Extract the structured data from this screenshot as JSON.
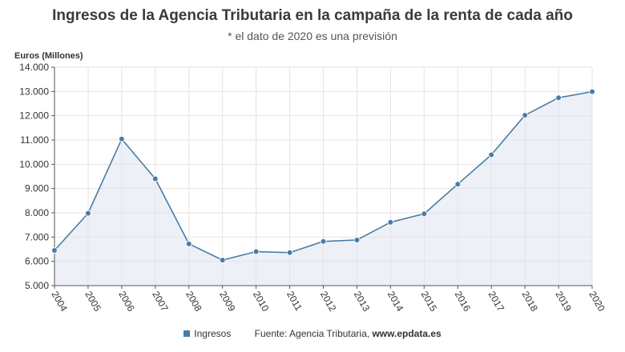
{
  "chart_data": {
    "type": "line",
    "title": "Ingresos de la Agencia Tributaria en la campaña de la renta de cada año",
    "subtitle": "* el dato de 2020 es una previsión",
    "ylabel": "Euros (Millones)",
    "xlabel": "",
    "ylim": [
      5000,
      14000
    ],
    "yticks": [
      5000,
      6000,
      7000,
      8000,
      9000,
      10000,
      11000,
      12000,
      13000,
      14000
    ],
    "ytick_labels": [
      "5.000",
      "6.000",
      "7.000",
      "8.000",
      "9.000",
      "10.000",
      "11.000",
      "12.000",
      "13.000",
      "14.000"
    ],
    "categories": [
      "2004",
      "2005",
      "2006",
      "2007",
      "2008",
      "2009",
      "2010",
      "2011",
      "2012",
      "2013",
      "2014",
      "2015",
      "2016",
      "2017",
      "2018",
      "2019",
      "2020"
    ],
    "series": [
      {
        "name": "Ingresos",
        "values": [
          6450,
          7980,
          11040,
          9400,
          6720,
          6050,
          6400,
          6360,
          6820,
          6880,
          7610,
          7960,
          9180,
          10390,
          12020,
          12740,
          12990
        ]
      }
    ],
    "grid": true,
    "legend": "bottom",
    "colors": {
      "line": "#4a7ba6",
      "area": "#dfe6f1",
      "grid": "#e3e3e3"
    }
  },
  "legend": {
    "series_label": "Ingresos",
    "source_prefix": "Fuente: Agencia Tributaria, ",
    "source_site": "www.epdata.es"
  }
}
